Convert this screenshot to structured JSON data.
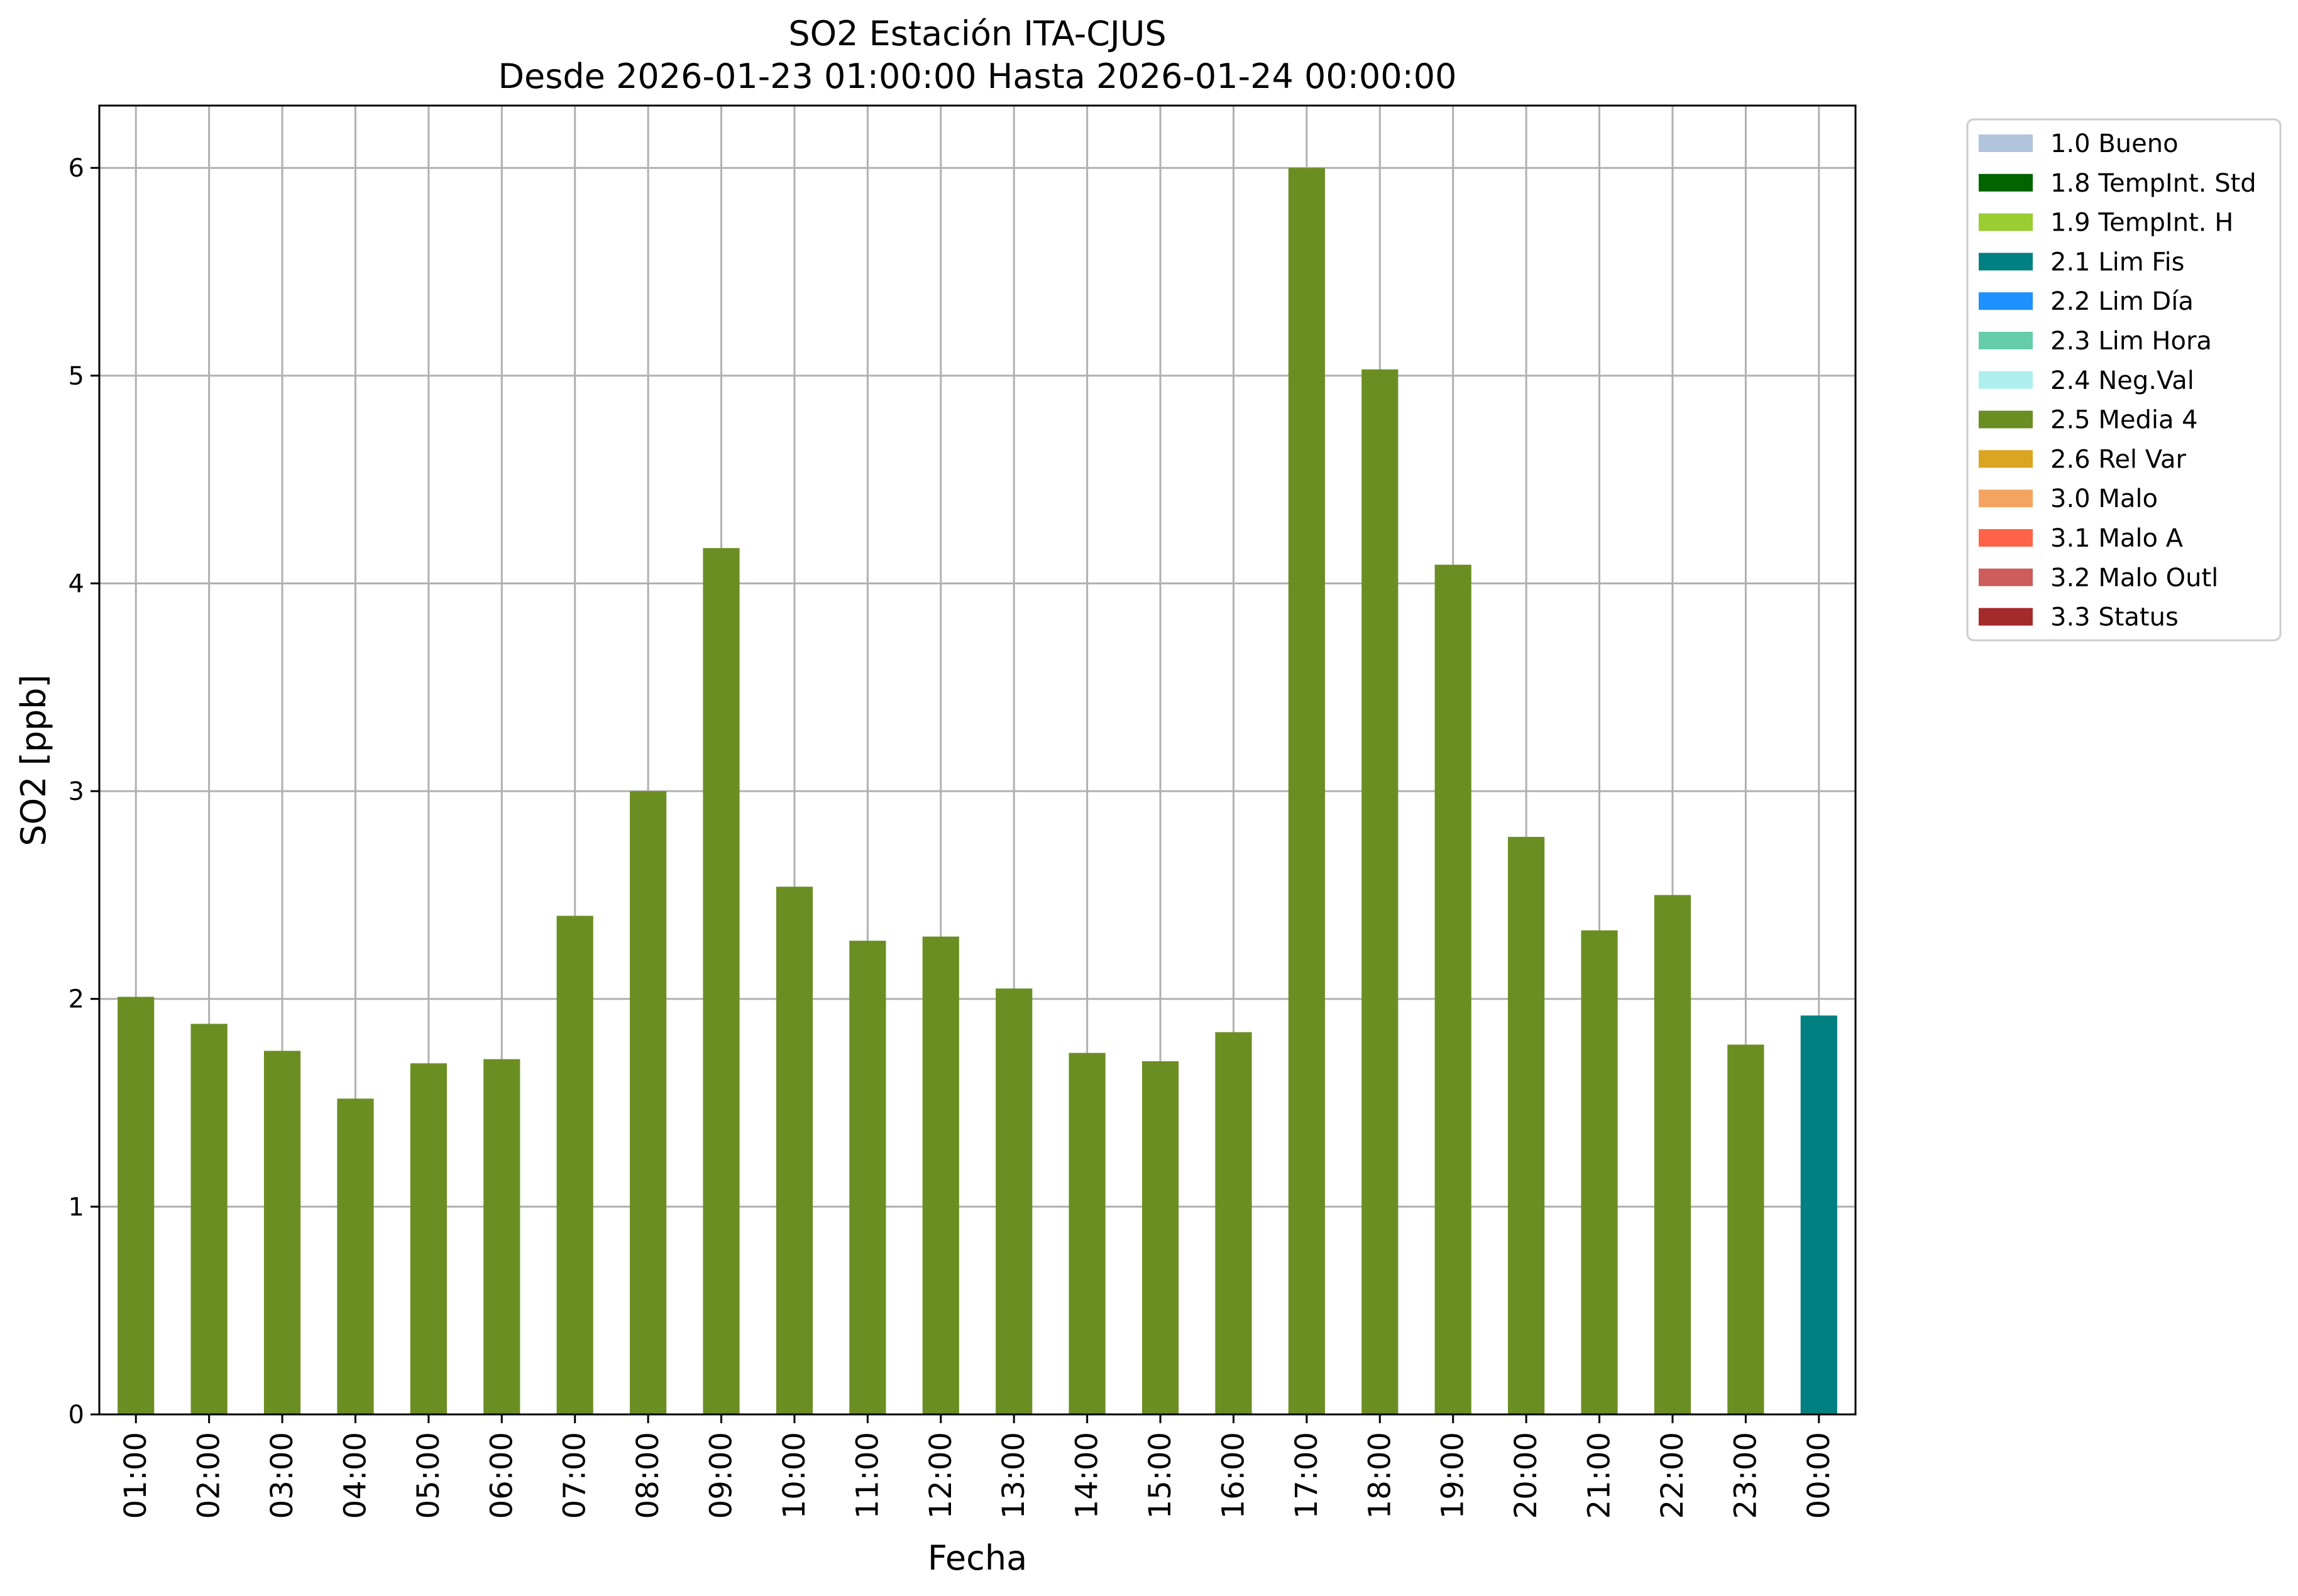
{
  "chart_data": {
    "type": "bar",
    "title": "SO2 Estación ITA-CJUS",
    "subtitle": "Desde 2026-01-23 01:00:00 Hasta 2026-01-24 00:00:00",
    "xlabel": "Fecha",
    "ylabel": "SO2 [ppb]",
    "ylim": [
      0,
      6.3
    ],
    "yticks": [
      "0",
      "1",
      "2",
      "3",
      "4",
      "5",
      "6"
    ],
    "grid": true,
    "legend_position": "outside-top-right",
    "categories": [
      "01:00",
      "02:00",
      "03:00",
      "04:00",
      "05:00",
      "06:00",
      "07:00",
      "08:00",
      "09:00",
      "10:00",
      "11:00",
      "12:00",
      "13:00",
      "14:00",
      "15:00",
      "16:00",
      "17:00",
      "18:00",
      "19:00",
      "20:00",
      "21:00",
      "22:00",
      "23:00",
      "00:00"
    ],
    "values": [
      2.01,
      1.88,
      1.75,
      1.52,
      1.69,
      1.71,
      2.4,
      3.0,
      4.17,
      2.54,
      2.28,
      2.3,
      2.05,
      1.74,
      1.7,
      1.84,
      6.0,
      5.03,
      4.09,
      2.78,
      2.33,
      2.5,
      1.78,
      1.92
    ],
    "bar_flags": [
      "2.5 Media 4",
      "2.5 Media 4",
      "2.5 Media 4",
      "2.5 Media 4",
      "2.5 Media 4",
      "2.5 Media 4",
      "2.5 Media 4",
      "2.5 Media 4",
      "2.5 Media 4",
      "2.5 Media 4",
      "2.5 Media 4",
      "2.5 Media 4",
      "2.5 Media 4",
      "2.5 Media 4",
      "2.5 Media 4",
      "2.5 Media 4",
      "2.5 Media 4",
      "2.5 Media 4",
      "2.5 Media 4",
      "2.5 Media 4",
      "2.5 Media 4",
      "2.5 Media 4",
      "2.5 Media 4",
      "2.1 Lim Fis"
    ],
    "legend": [
      {
        "label": "1.0 Bueno",
        "color": "#b0c4de"
      },
      {
        "label": "1.8 TempInt. Std",
        "color": "#006400"
      },
      {
        "label": "1.9 TempInt. H",
        "color": "#9acd32"
      },
      {
        "label": "2.1 Lim Fis",
        "color": "#008080"
      },
      {
        "label": "2.2 Lim Día",
        "color": "#1e90ff"
      },
      {
        "label": "2.3 Lim Hora",
        "color": "#66cdaa"
      },
      {
        "label": "2.4 Neg.Val",
        "color": "#afeeee"
      },
      {
        "label": "2.5 Media 4",
        "color": "#6b8e23"
      },
      {
        "label": "2.6 Rel Var",
        "color": "#daa520"
      },
      {
        "label": "3.0 Malo",
        "color": "#f4a460"
      },
      {
        "label": "3.1 Malo A",
        "color": "#ff6347"
      },
      {
        "label": "3.2 Malo Outl",
        "color": "#cd5c5c"
      },
      {
        "label": "3.3 Status",
        "color": "#a52a2a"
      }
    ]
  }
}
